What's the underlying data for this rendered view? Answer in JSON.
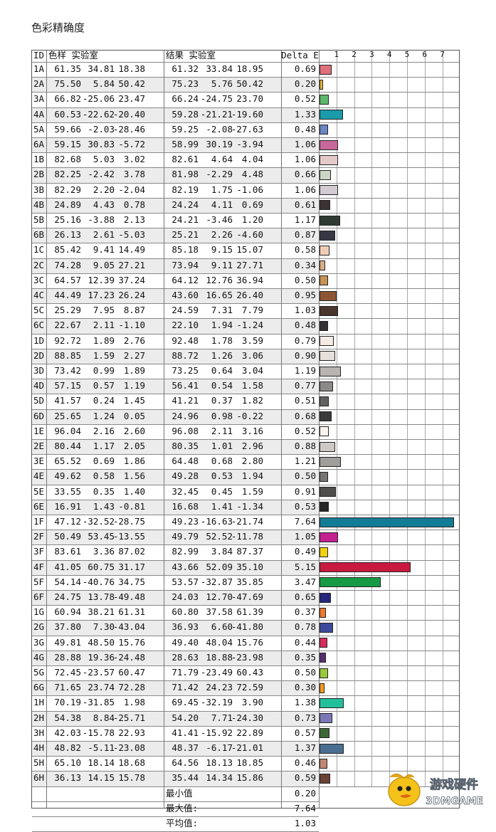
{
  "title": "色彩精确度",
  "chart_data": {
    "type": "bar",
    "orientation": "horizontal",
    "title": "色彩精确度",
    "header": {
      "id": "ID",
      "sample": "色样 实验室",
      "result": "结果 实验室",
      "delta": "Delta E"
    },
    "x_ticks": [
      "1",
      "2",
      "3",
      "4",
      "5",
      "6",
      "7"
    ],
    "xlim": [
      0,
      7.8
    ],
    "rows": [
      {
        "id": "1A",
        "sample": [
          "61.35",
          "34.81",
          "18.38"
        ],
        "result": [
          "61.32",
          "33.84",
          "18.95"
        ],
        "delta": 0.69,
        "delta_label": "0.69",
        "color": "#e0707a"
      },
      {
        "id": "2A",
        "sample": [
          "75.50",
          "5.84",
          "50.42"
        ],
        "result": [
          "75.23",
          "5.76",
          "50.42"
        ],
        "delta": 0.2,
        "delta_label": "0.20",
        "color": "#e3b63a"
      },
      {
        "id": "3A",
        "sample": [
          "66.82",
          "-25.06",
          "23.47"
        ],
        "result": [
          "66.24",
          "-24.75",
          "23.70"
        ],
        "delta": 0.52,
        "delta_label": "0.52",
        "color": "#5cb86a"
      },
      {
        "id": "4A",
        "sample": [
          "60.53",
          "-22.62",
          "-20.40"
        ],
        "result": [
          "59.28",
          "-21.21",
          "-19.60"
        ],
        "delta": 1.33,
        "delta_label": "1.33",
        "color": "#1a9aaa"
      },
      {
        "id": "5A",
        "sample": [
          "59.66",
          "-2.03",
          "-28.46"
        ],
        "result": [
          "59.25",
          "-2.08",
          "-27.63"
        ],
        "delta": 0.48,
        "delta_label": "0.48",
        "color": "#6b86c4"
      },
      {
        "id": "6A",
        "sample": [
          "59.15",
          "30.83",
          "-5.72"
        ],
        "result": [
          "58.99",
          "30.19",
          "-3.94"
        ],
        "delta": 1.06,
        "delta_label": "1.06",
        "color": "#c8689a"
      },
      {
        "id": "1B",
        "sample": [
          "82.68",
          "5.03",
          "3.02"
        ],
        "result": [
          "82.61",
          "4.64",
          "4.04"
        ],
        "delta": 1.06,
        "delta_label": "1.06",
        "color": "#e4cbc9"
      },
      {
        "id": "2B",
        "sample": [
          "82.25",
          "-2.42",
          "3.78"
        ],
        "result": [
          "81.98",
          "-2.29",
          "4.48"
        ],
        "delta": 0.66,
        "delta_label": "0.66",
        "color": "#cbd6c6"
      },
      {
        "id": "3B",
        "sample": [
          "82.29",
          "2.20",
          "-2.04"
        ],
        "result": [
          "82.19",
          "1.75",
          "-1.06"
        ],
        "delta": 1.06,
        "delta_label": "1.06",
        "color": "#d2ccd2"
      },
      {
        "id": "4B",
        "sample": [
          "24.89",
          "4.43",
          "0.78"
        ],
        "result": [
          "24.24",
          "4.11",
          "0.69"
        ],
        "delta": 0.61,
        "delta_label": "0.61",
        "color": "#3b3232"
      },
      {
        "id": "5B",
        "sample": [
          "25.16",
          "-3.88",
          "2.13"
        ],
        "result": [
          "24.21",
          "-3.46",
          "1.20"
        ],
        "delta": 1.17,
        "delta_label": "1.17",
        "color": "#2e3a32"
      },
      {
        "id": "6B",
        "sample": [
          "26.13",
          "2.61",
          "-5.03"
        ],
        "result": [
          "25.21",
          "2.26",
          "-4.60"
        ],
        "delta": 0.87,
        "delta_label": "0.87",
        "color": "#363846"
      },
      {
        "id": "1C",
        "sample": [
          "85.42",
          "9.41",
          "14.49"
        ],
        "result": [
          "85.18",
          "9.15",
          "15.07"
        ],
        "delta": 0.58,
        "delta_label": "0.58",
        "color": "#f2cdb6"
      },
      {
        "id": "2C",
        "sample": [
          "74.28",
          "9.05",
          "27.21"
        ],
        "result": [
          "73.94",
          "9.11",
          "27.71"
        ],
        "delta": 0.34,
        "delta_label": "0.34",
        "color": "#d9ae84"
      },
      {
        "id": "3C",
        "sample": [
          "64.57",
          "12.39",
          "37.24"
        ],
        "result": [
          "64.12",
          "12.76",
          "36.94"
        ],
        "delta": 0.5,
        "delta_label": "0.50",
        "color": "#c79252"
      },
      {
        "id": "4C",
        "sample": [
          "44.49",
          "17.23",
          "26.24"
        ],
        "result": [
          "43.60",
          "16.65",
          "26.40"
        ],
        "delta": 0.95,
        "delta_label": "0.95",
        "color": "#8e5534"
      },
      {
        "id": "5C",
        "sample": [
          "25.29",
          "7.95",
          "8.87"
        ],
        "result": [
          "24.59",
          "7.31",
          "7.79"
        ],
        "delta": 1.03,
        "delta_label": "1.03",
        "color": "#49352c"
      },
      {
        "id": "6C",
        "sample": [
          "22.67",
          "2.11",
          "-1.10"
        ],
        "result": [
          "22.10",
          "1.94",
          "-1.24"
        ],
        "delta": 0.48,
        "delta_label": "0.48",
        "color": "#343034"
      },
      {
        "id": "1D",
        "sample": [
          "92.72",
          "1.89",
          "2.76"
        ],
        "result": [
          "92.48",
          "1.78",
          "3.59"
        ],
        "delta": 0.79,
        "delta_label": "0.79",
        "color": "#f4ebe4"
      },
      {
        "id": "2D",
        "sample": [
          "88.85",
          "1.59",
          "2.27"
        ],
        "result": [
          "88.72",
          "1.26",
          "3.06"
        ],
        "delta": 0.9,
        "delta_label": "0.90",
        "color": "#e6e0dc"
      },
      {
        "id": "3D",
        "sample": [
          "73.42",
          "0.99",
          "1.89"
        ],
        "result": [
          "73.25",
          "0.64",
          "3.04"
        ],
        "delta": 1.19,
        "delta_label": "1.19",
        "color": "#b8b4b0"
      },
      {
        "id": "4D",
        "sample": [
          "57.15",
          "0.57",
          "1.19"
        ],
        "result": [
          "56.41",
          "0.54",
          "1.58"
        ],
        "delta": 0.77,
        "delta_label": "0.77",
        "color": "#8c8a88"
      },
      {
        "id": "5D",
        "sample": [
          "41.57",
          "0.24",
          "1.45"
        ],
        "result": [
          "41.21",
          "0.37",
          "1.82"
        ],
        "delta": 0.51,
        "delta_label": "0.51",
        "color": "#636160"
      },
      {
        "id": "6D",
        "sample": [
          "25.65",
          "1.24",
          "0.05"
        ],
        "result": [
          "24.96",
          "0.98",
          "-0.22"
        ],
        "delta": 0.68,
        "delta_label": "0.68",
        "color": "#3b3a3a"
      },
      {
        "id": "1E",
        "sample": [
          "96.04",
          "2.16",
          "2.60"
        ],
        "result": [
          "96.08",
          "2.11",
          "3.16"
        ],
        "delta": 0.52,
        "delta_label": "0.52",
        "color": "#faf3ee"
      },
      {
        "id": "2E",
        "sample": [
          "80.44",
          "1.17",
          "2.05"
        ],
        "result": [
          "80.35",
          "1.01",
          "2.96"
        ],
        "delta": 0.88,
        "delta_label": "0.88",
        "color": "#cdc9c6"
      },
      {
        "id": "3E",
        "sample": [
          "65.52",
          "0.69",
          "1.86"
        ],
        "result": [
          "64.48",
          "0.68",
          "2.80"
        ],
        "delta": 1.21,
        "delta_label": "1.21",
        "color": "#a19f9c"
      },
      {
        "id": "4E",
        "sample": [
          "49.62",
          "0.58",
          "1.56"
        ],
        "result": [
          "49.28",
          "0.53",
          "1.94"
        ],
        "delta": 0.5,
        "delta_label": "0.50",
        "color": "#777574"
      },
      {
        "id": "5E",
        "sample": [
          "33.55",
          "0.35",
          "1.40"
        ],
        "result": [
          "32.45",
          "0.45",
          "1.59"
        ],
        "delta": 0.91,
        "delta_label": "0.91",
        "color": "#4f4e4d"
      },
      {
        "id": "6E",
        "sample": [
          "16.91",
          "1.43",
          "-0.81"
        ],
        "result": [
          "16.68",
          "1.41",
          "-1.34"
        ],
        "delta": 0.53,
        "delta_label": "0.53",
        "color": "#262626"
      },
      {
        "id": "1F",
        "sample": [
          "47.12",
          "-32.52",
          "-28.75"
        ],
        "result": [
          "49.23",
          "-16.63",
          "-21.74"
        ],
        "delta": 7.64,
        "delta_label": "7.64",
        "color": "#127c96"
      },
      {
        "id": "2F",
        "sample": [
          "50.49",
          "53.45",
          "-13.55"
        ],
        "result": [
          "49.79",
          "52.52",
          "-11.78"
        ],
        "delta": 1.05,
        "delta_label": "1.05",
        "color": "#c42290"
      },
      {
        "id": "3F",
        "sample": [
          "83.61",
          "3.36",
          "87.02"
        ],
        "result": [
          "82.99",
          "3.84",
          "87.37"
        ],
        "delta": 0.49,
        "delta_label": "0.49",
        "color": "#f2d20e"
      },
      {
        "id": "4F",
        "sample": [
          "41.05",
          "60.75",
          "31.17"
        ],
        "result": [
          "43.66",
          "52.09",
          "35.10"
        ],
        "delta": 5.15,
        "delta_label": "5.15",
        "color": "#c81a40"
      },
      {
        "id": "5F",
        "sample": [
          "54.14",
          "-40.76",
          "34.75"
        ],
        "result": [
          "53.57",
          "-32.87",
          "35.85"
        ],
        "delta": 3.47,
        "delta_label": "3.47",
        "color": "#179a44"
      },
      {
        "id": "6F",
        "sample": [
          "24.75",
          "13.78",
          "-49.48"
        ],
        "result": [
          "24.03",
          "12.70",
          "-47.69"
        ],
        "delta": 0.65,
        "delta_label": "0.65",
        "color": "#25267e"
      },
      {
        "id": "1G",
        "sample": [
          "60.94",
          "38.21",
          "61.31"
        ],
        "result": [
          "60.80",
          "37.58",
          "61.39"
        ],
        "delta": 0.37,
        "delta_label": "0.37",
        "color": "#f0782a"
      },
      {
        "id": "2G",
        "sample": [
          "37.80",
          "7.30",
          "-43.04"
        ],
        "result": [
          "36.93",
          "6.60",
          "-41.80"
        ],
        "delta": 0.78,
        "delta_label": "0.78",
        "color": "#3c4a9c"
      },
      {
        "id": "3G",
        "sample": [
          "49.81",
          "48.50",
          "15.76"
        ],
        "result": [
          "49.40",
          "48.04",
          "15.76"
        ],
        "delta": 0.44,
        "delta_label": "0.44",
        "color": "#d82c5a"
      },
      {
        "id": "4G",
        "sample": [
          "28.88",
          "19.36",
          "-24.48"
        ],
        "result": [
          "28.63",
          "18.88",
          "-23.98"
        ],
        "delta": 0.35,
        "delta_label": "0.35",
        "color": "#5a2c70"
      },
      {
        "id": "5G",
        "sample": [
          "72.45",
          "-23.57",
          "60.47"
        ],
        "result": [
          "71.79",
          "-23.49",
          "60.43"
        ],
        "delta": 0.5,
        "delta_label": "0.50",
        "color": "#98c83c"
      },
      {
        "id": "6G",
        "sample": [
          "71.65",
          "23.74",
          "72.28"
        ],
        "result": [
          "71.42",
          "24.23",
          "72.59"
        ],
        "delta": 0.3,
        "delta_label": "0.30",
        "color": "#f49a24"
      },
      {
        "id": "1H",
        "sample": [
          "70.19",
          "-31.85",
          "1.98"
        ],
        "result": [
          "69.45",
          "-32.19",
          "3.90"
        ],
        "delta": 1.38,
        "delta_label": "1.38",
        "color": "#22c09a"
      },
      {
        "id": "2H",
        "sample": [
          "54.38",
          "8.84",
          "-25.71"
        ],
        "result": [
          "54.20",
          "7.71",
          "-24.30"
        ],
        "delta": 0.73,
        "delta_label": "0.73",
        "color": "#7c78b8"
      },
      {
        "id": "3H",
        "sample": [
          "42.03",
          "-15.78",
          "22.93"
        ],
        "result": [
          "41.41",
          "-15.92",
          "22.89"
        ],
        "delta": 0.57,
        "delta_label": "0.57",
        "color": "#3c6a34"
      },
      {
        "id": "4H",
        "sample": [
          "48.82",
          "-5.11",
          "-23.08"
        ],
        "result": [
          "48.37",
          "-6.17",
          "-21.01"
        ],
        "delta": 1.37,
        "delta_label": "1.37",
        "color": "#4a6e92"
      },
      {
        "id": "5H",
        "sample": [
          "65.10",
          "18.14",
          "18.68"
        ],
        "result": [
          "64.56",
          "18.13",
          "18.85"
        ],
        "delta": 0.46,
        "delta_label": "0.46",
        "color": "#c08874"
      },
      {
        "id": "6H",
        "sample": [
          "36.13",
          "14.15",
          "15.78"
        ],
        "result": [
          "35.44",
          "14.34",
          "15.86"
        ],
        "delta": 0.59,
        "delta_label": "0.59",
        "color": "#6a4234"
      }
    ],
    "summary": [
      {
        "label": "最小值",
        "value": "0.20"
      },
      {
        "label": "最大值:",
        "value": "7.64"
      },
      {
        "label": "平均值:",
        "value": "1.03"
      }
    ]
  },
  "watermark": {
    "line1": "游戏硬件",
    "line2": "3DMGAME"
  }
}
